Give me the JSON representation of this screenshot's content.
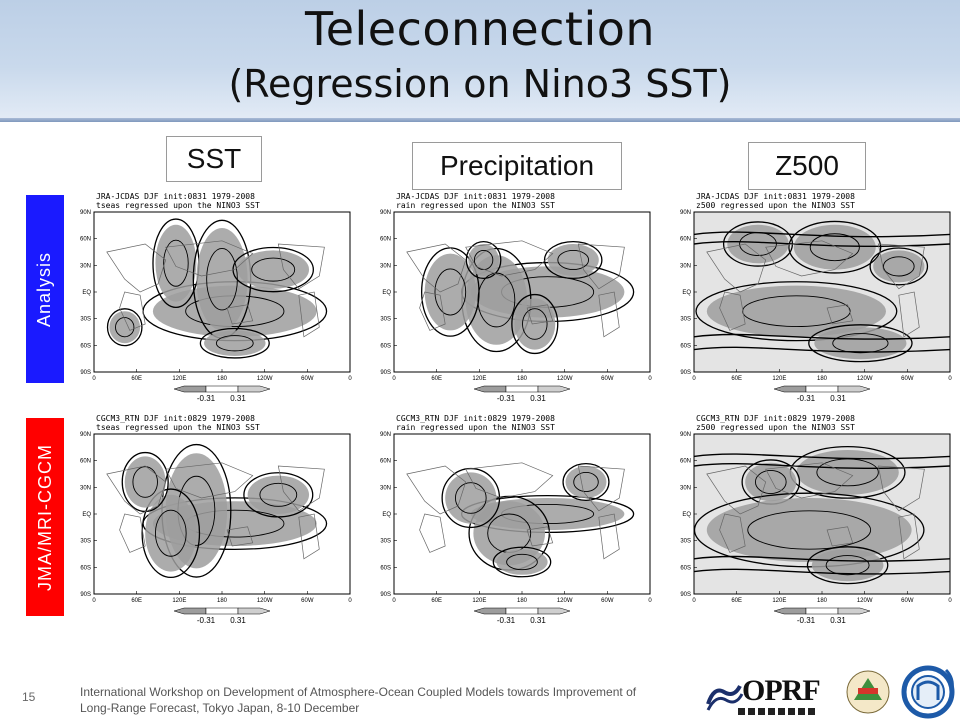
{
  "slide": {
    "title": "Teleconnection",
    "subtitle": "(Regression on Nino3 SST)",
    "page_number": "15",
    "footer_line1": "International Workshop on Development of Atmosphere-Ocean Coupled Models towards Improvement of",
    "footer_line2": "Long-Range Forecast, Tokyo Japan, 8-10 December"
  },
  "columns": [
    {
      "label": "SST"
    },
    {
      "label": "Precipitation"
    },
    {
      "label": "Z500"
    }
  ],
  "rows": [
    {
      "label": "Analysis",
      "color": "#1a1aff"
    },
    {
      "label": "JMA/MRI-CGCM",
      "color": "#ff0000"
    }
  ],
  "panels": [
    {
      "line1": "JRA-JCDAS   DJF init:0831 1979-2008",
      "line2": "tseas regressed upon the NINO3 SST",
      "cb_low": "-0.31",
      "cb_high": "0.31"
    },
    {
      "line1": "JRA-JCDAS   DJF init:0831 1979-2008",
      "line2": "rain regressed upon the NINO3 SST",
      "cb_low": "-0.31",
      "cb_high": "0.31"
    },
    {
      "line1": "JRA-JCDAS   DJF init:0831 1979-2008",
      "line2": "z500 regressed upon the NINO3 SST",
      "cb_low": "-0.31",
      "cb_high": "0.31"
    },
    {
      "line1": "CGCM3_RTN   DJF init:0829 1979-2008",
      "line2": "tseas regressed upon the NINO3 SST",
      "cb_low": "-0.31",
      "cb_high": "0.31"
    },
    {
      "line1": "CGCM3_RTN   DJF init:0829 1979-2008",
      "line2": "rain regressed upon the NINO3 SST",
      "cb_low": "-0.31",
      "cb_high": "0.31"
    },
    {
      "line1": "CGCM3_RTN   DJF init:0829 1979-2008",
      "line2": "z500 regressed upon the NINO3 SST",
      "cb_low": "-0.31",
      "cb_high": "0.31"
    }
  ],
  "axes": {
    "lat_ticks": [
      "90N",
      "60N",
      "30N",
      "EQ",
      "30S",
      "60S",
      "90S"
    ],
    "lon_ticks": [
      "0",
      "60E",
      "120E",
      "180",
      "120W",
      "60W",
      "0"
    ]
  },
  "logos": {
    "oprf_text": "OPRF"
  }
}
